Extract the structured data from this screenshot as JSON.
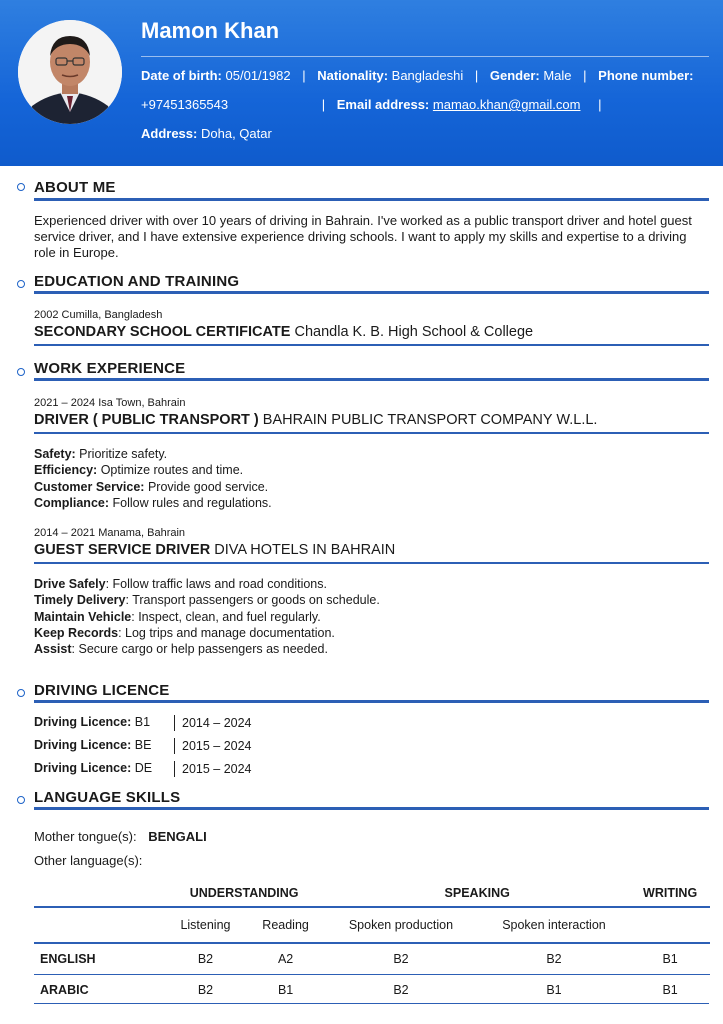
{
  "header": {
    "name": "Mamon Khan",
    "dob_label": "Date of birth:",
    "dob": "05/01/1982",
    "nationality_label": "Nationality:",
    "nationality": "Bangladeshi",
    "gender_label": "Gender:",
    "gender": "Male",
    "phone_label": "Phone number:",
    "phone": "+97451365543",
    "email_label": "Email address:",
    "email": "mamao.khan@gmail.com",
    "address_label": "Address:",
    "address": "Doha, Qatar",
    "separator": "|"
  },
  "about": {
    "title": "ABOUT ME",
    "text": "Experienced driver with over 10 years of driving in Bahrain. I've worked as a public transport driver and hotel guest service driver, and I have extensive experience driving schools. I want to apply my skills and expertise to a driving role in Europe."
  },
  "education": {
    "title": "EDUCATION AND TRAINING",
    "meta": "2002 Cumilla, Bangladesh",
    "degree": "SECONDARY SCHOOL CERTIFICATE",
    "school": "Chandla K. B. High School & College"
  },
  "work": {
    "title": "WORK EXPERIENCE",
    "jobs": [
      {
        "meta": "2021 – 2024 Isa Town, Bahrain",
        "role": "DRIVER ( PUBLIC TRANSPORT )",
        "company": "BAHRAIN PUBLIC TRANSPORT COMPANY W.L.L.",
        "items": [
          {
            "k": "Safety:",
            "v": "Prioritize safety."
          },
          {
            "k": "Efficiency:",
            "v": "Optimize routes and time."
          },
          {
            "k": "Customer Service:",
            "v": "Provide good service."
          },
          {
            "k": "Compliance:",
            "v": "Follow rules and regulations."
          }
        ]
      },
      {
        "meta": "2014 – 2021 Manama, Bahrain",
        "role": "GUEST SERVICE DRIVER",
        "company": "DIVA HOTELS IN BAHRAIN",
        "items": [
          {
            "k": "Drive Safely",
            "v": ": Follow traffic laws and road conditions."
          },
          {
            "k": "Timely Delivery",
            "v": ": Transport passengers or goods on schedule."
          },
          {
            "k": "Maintain Vehicle",
            "v": ": Inspect, clean, and fuel regularly."
          },
          {
            "k": "Keep Records",
            "v": ": Log trips and manage documentation."
          },
          {
            "k": "Assist",
            "v": ": Secure cargo or help passengers as needed."
          }
        ]
      }
    ]
  },
  "licence": {
    "title": "DRIVING LICENCE",
    "label": "Driving Licence:",
    "items": [
      {
        "cls": "B1",
        "period": "2014 – 2024"
      },
      {
        "cls": "BE",
        "period": "2015 – 2024"
      },
      {
        "cls": "DE",
        "period": "2015 – 2024"
      }
    ]
  },
  "languages": {
    "title": "LANGUAGE SKILLS",
    "mother_label": "Mother tongue(s):",
    "mother": "BENGALI",
    "other_label": "Other language(s):",
    "groups": [
      "UNDERSTANDING",
      "SPEAKING",
      "WRITING"
    ],
    "sub": [
      "Listening",
      "Reading",
      "Spoken production",
      "Spoken interaction"
    ],
    "rows": [
      {
        "lang": "ENGLISH",
        "vals": [
          "B2",
          "A2",
          "B2",
          "B2",
          "B1"
        ]
      },
      {
        "lang": "ARABIC",
        "vals": [
          "B2",
          "B1",
          "B2",
          "B1",
          "B1"
        ]
      }
    ]
  }
}
